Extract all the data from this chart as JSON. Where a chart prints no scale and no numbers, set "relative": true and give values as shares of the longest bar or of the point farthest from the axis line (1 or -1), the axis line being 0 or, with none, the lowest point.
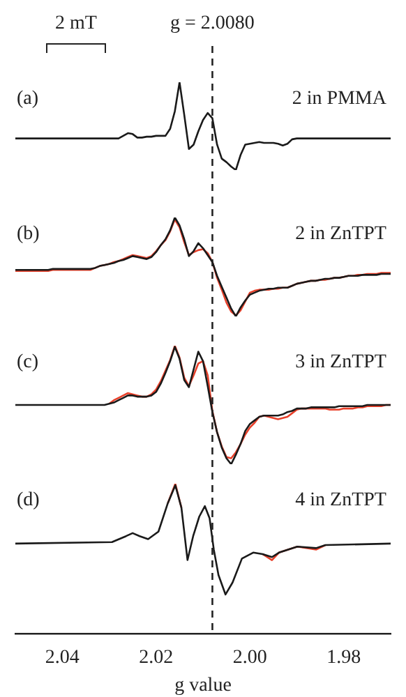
{
  "chart_data": [
    {
      "type": "line",
      "relative": true,
      "tick_labels": false,
      "annotations": [
        "(a)",
        "2 in PMMA",
        "2 mT"
      ],
      "categories": [
        null,
        null,
        null,
        null,
        null,
        null,
        null,
        null,
        null,
        null,
        null,
        null,
        null,
        null,
        null,
        null,
        null,
        null,
        null,
        null,
        null,
        null,
        null,
        null,
        null,
        null,
        null,
        null,
        null,
        null,
        null,
        null,
        null,
        null,
        null,
        null,
        null,
        null,
        null,
        null,
        null,
        null,
        null,
        null,
        null,
        null,
        null,
        null,
        null,
        null,
        null,
        null,
        null,
        null,
        null,
        null,
        null,
        null,
        null,
        null,
        null,
        null,
        null,
        null,
        null,
        null,
        null,
        null,
        null,
        null,
        null,
        null,
        null,
        null,
        null,
        null,
        null,
        null,
        null,
        null,
        null
      ],
      "series": [
        {
          "color": "#1a1a1a",
          "values": [
            0.36,
            0.36,
            0.36,
            0.36,
            0.36,
            0.36,
            0.36,
            0.36,
            0.36,
            0.36,
            0.36,
            0.36,
            0.36,
            0.36,
            0.36,
            0.36,
            0.36,
            0.36,
            0.36,
            0.36,
            0.36,
            0.36,
            0.36,
            0.39,
            0.42,
            0.41,
            0.37,
            0.37,
            0.38,
            0.38,
            0.39,
            0.39,
            0.39,
            0.47,
            0.67,
            1,
            0.63,
            0.24,
            0.29,
            0.44,
            0.57,
            0.65,
            0.59,
            0.29,
            0.13,
            0.09,
            0.04,
            0,
            0.17,
            0.29,
            0.3,
            0.31,
            0.32,
            0.31,
            0.31,
            0.31,
            0.3,
            0.28,
            0.3,
            0.35,
            0.36,
            0.36,
            0.36,
            0.36,
            0.36,
            0.36,
            0.36,
            0.36,
            0.36,
            0.36,
            0.36,
            0.36,
            0.36,
            0.36,
            0.36,
            0.36,
            0.36,
            0.36,
            0.36,
            0.36,
            0.36
          ]
        }
      ]
    },
    {
      "type": "line",
      "relative": true,
      "tick_labels": false,
      "annotations": [
        "(b)",
        "2 in ZnTPT"
      ],
      "categories": [
        null,
        null,
        null,
        null,
        null,
        null,
        null,
        null,
        null,
        null,
        null,
        null,
        null,
        null,
        null,
        null,
        null,
        null,
        null,
        null,
        null,
        null,
        null,
        null,
        null,
        null,
        null,
        null,
        null,
        null,
        null,
        null,
        null,
        null,
        null,
        null,
        null,
        null,
        null,
        null,
        null,
        null,
        null,
        null,
        null,
        null,
        null,
        null,
        null,
        null,
        null,
        null,
        null,
        null,
        null,
        null,
        null,
        null,
        null,
        null,
        null,
        null,
        null,
        null,
        null,
        null,
        null,
        null,
        null,
        null,
        null,
        null,
        null,
        null,
        null,
        null,
        null,
        null,
        null,
        null,
        null
      ],
      "series": [
        {
          "color": "#e8402a",
          "values": [
            0.46,
            0.46,
            0.46,
            0.46,
            0.46,
            0.46,
            0.46,
            0.46,
            0.47,
            0.47,
            0.47,
            0.47,
            0.47,
            0.47,
            0.47,
            0.47,
            0.47,
            0.49,
            0.51,
            0.52,
            0.53,
            0.55,
            0.56,
            0.58,
            0.6,
            0.62,
            0.61,
            0.6,
            0.59,
            0.61,
            0.66,
            0.72,
            0.77,
            0.86,
            0.98,
            0.9,
            0.75,
            0.62,
            0.65,
            0.67,
            0.68,
            0.64,
            0.55,
            0.39,
            0.27,
            0.14,
            0.05,
            0.01,
            0.06,
            0.15,
            0.24,
            0.26,
            0.27,
            0.27,
            0.27,
            0.28,
            0.28,
            0.29,
            0.29,
            0.31,
            0.33,
            0.34,
            0.35,
            0.36,
            0.36,
            0.37,
            0.37,
            0.38,
            0.39,
            0.39,
            0.4,
            0.41,
            0.41,
            0.42,
            0.42,
            0.43,
            0.43,
            0.43,
            0.44,
            0.44,
            0.44
          ]
        },
        {
          "color": "#1a1a1a",
          "values": [
            0.47,
            0.47,
            0.47,
            0.47,
            0.47,
            0.47,
            0.47,
            0.47,
            0.48,
            0.48,
            0.48,
            0.48,
            0.48,
            0.48,
            0.48,
            0.48,
            0.48,
            0.49,
            0.51,
            0.52,
            0.53,
            0.54,
            0.56,
            0.57,
            0.59,
            0.61,
            0.6,
            0.59,
            0.58,
            0.6,
            0.65,
            0.72,
            0.78,
            0.87,
            1,
            0.92,
            0.78,
            0.61,
            0.66,
            0.74,
            0.69,
            0.62,
            0.55,
            0.41,
            0.3,
            0.19,
            0.08,
            0,
            0.09,
            0.16,
            0.22,
            0.24,
            0.26,
            0.27,
            0.28,
            0.28,
            0.29,
            0.29,
            0.29,
            0.31,
            0.33,
            0.34,
            0.35,
            0.36,
            0.36,
            0.37,
            0.38,
            0.38,
            0.39,
            0.39,
            0.4,
            0.41,
            0.41,
            0.41,
            0.42,
            0.42,
            0.42,
            0.42,
            0.43,
            0.43,
            0.43
          ]
        }
      ]
    },
    {
      "type": "line",
      "relative": true,
      "tick_labels": false,
      "annotations": [
        "(c)",
        "3 in ZnTPT"
      ],
      "categories": [
        null,
        null,
        null,
        null,
        null,
        null,
        null,
        null,
        null,
        null,
        null,
        null,
        null,
        null,
        null,
        null,
        null,
        null,
        null,
        null,
        null,
        null,
        null,
        null,
        null,
        null,
        null,
        null,
        null,
        null,
        null,
        null,
        null,
        null,
        null,
        null,
        null,
        null,
        null,
        null,
        null,
        null,
        null,
        null,
        null,
        null,
        null,
        null,
        null,
        null,
        null,
        null,
        null,
        null,
        null,
        null,
        null,
        null,
        null,
        null,
        null,
        null,
        null,
        null,
        null,
        null,
        null,
        null,
        null,
        null,
        null,
        null,
        null,
        null,
        null,
        null,
        null,
        null,
        null,
        null,
        null
      ],
      "series": [
        {
          "color": "#e8402a",
          "values": [
            null,
            null,
            null,
            null,
            null,
            null,
            null,
            null,
            null,
            null,
            null,
            null,
            null,
            null,
            null,
            null,
            null,
            null,
            null,
            null,
            0.51,
            0.54,
            0.56,
            0.58,
            0.6,
            0.59,
            0.58,
            0.57,
            0.57,
            0.59,
            0.63,
            0.7,
            0.79,
            0.88,
            1,
            0.9,
            0.73,
            0.66,
            0.75,
            0.85,
            0.87,
            0.75,
            0.45,
            0.27,
            0.15,
            0.06,
            0.05,
            0.1,
            0.17,
            0.25,
            0.31,
            0.35,
            0.4,
            0.41,
            0.4,
            0.39,
            0.38,
            0.39,
            0.4,
            0.43,
            0.46,
            0.47,
            0.47,
            0.47,
            0.47,
            0.47,
            0.47,
            0.46,
            0.46,
            0.46,
            0.47,
            0.47,
            0.47,
            0.48,
            0.48,
            0.49,
            0.49,
            0.49,
            0.49,
            0.5,
            0.5
          ]
        },
        {
          "color": "#1a1a1a",
          "values": [
            0.5,
            0.5,
            0.5,
            0.5,
            0.5,
            0.5,
            0.5,
            0.5,
            0.5,
            0.5,
            0.5,
            0.5,
            0.5,
            0.5,
            0.5,
            0.5,
            0.5,
            0.5,
            0.5,
            0.5,
            0.51,
            0.52,
            0.54,
            0.56,
            0.58,
            0.58,
            0.57,
            0.57,
            0.57,
            0.58,
            0.61,
            0.68,
            0.77,
            0.87,
            0.99,
            0.89,
            0.71,
            0.65,
            0.8,
            0.95,
            0.87,
            0.66,
            0.44,
            0.27,
            0.14,
            0.05,
            0,
            0.08,
            0.17,
            0.28,
            0.34,
            0.37,
            0.4,
            0.41,
            0.41,
            0.41,
            0.41,
            0.42,
            0.44,
            0.45,
            0.47,
            0.47,
            0.47,
            0.48,
            0.48,
            0.48,
            0.48,
            0.48,
            0.48,
            0.49,
            0.49,
            0.49,
            0.49,
            0.49,
            0.49,
            0.5,
            0.5,
            0.5,
            0.5,
            0.5,
            0.5
          ]
        }
      ]
    },
    {
      "type": "line",
      "relative": true,
      "tick_labels": "x",
      "xlim": [
        2.05,
        1.97
      ],
      "xticks": [
        2.04,
        2.02,
        {
          "value": 2.0,
          "label": "2.00"
        },
        1.98
      ],
      "xlabel": "g value",
      "annotations": [
        "(d)",
        "4 in ZnTPT"
      ],
      "ref_lines": [
        {
          "axis": "x",
          "value": 2.008,
          "label": "g = 2.0080",
          "line_style": "dashed",
          "color": "#222222"
        }
      ],
      "x": [
        2.05,
        2.0294,
        2.0264,
        2.025,
        2.0235,
        2.0217,
        2.0195,
        2.0175,
        2.0159,
        2.0146,
        2.0133,
        2.0121,
        2.0108,
        2.0096,
        2.0086,
        2.0077,
        2.0067,
        2.0052,
        2.0037,
        2.0017,
        1.9993,
        1.9973,
        1.9953,
        1.9938,
        1.9899,
        1.9859,
        1.9839,
        1.97
      ],
      "series": [
        {
          "color": "#e8402a",
          "values": [
            null,
            null,
            null,
            null,
            null,
            null,
            null,
            0.87,
            1,
            0.84,
            null,
            null,
            null,
            null,
            null,
            null,
            null,
            null,
            null,
            null,
            null,
            0.53,
            0.49,
            0.54,
            0.58,
            0.56,
            0.59,
            null
          ]
        },
        {
          "color": "#1a1a1a",
          "values": [
            0.6,
            0.61,
            0.65,
            0.67,
            0.65,
            0.63,
            0.68,
            0.87,
            0.99,
            0.84,
            0.49,
            0.65,
            0.78,
            0.85,
            0.77,
            0.56,
            0.39,
            0.26,
            0.34,
            0.5,
            0.54,
            0.53,
            0.51,
            0.54,
            0.58,
            0.57,
            0.59,
            0.6
          ]
        }
      ]
    }
  ]
}
